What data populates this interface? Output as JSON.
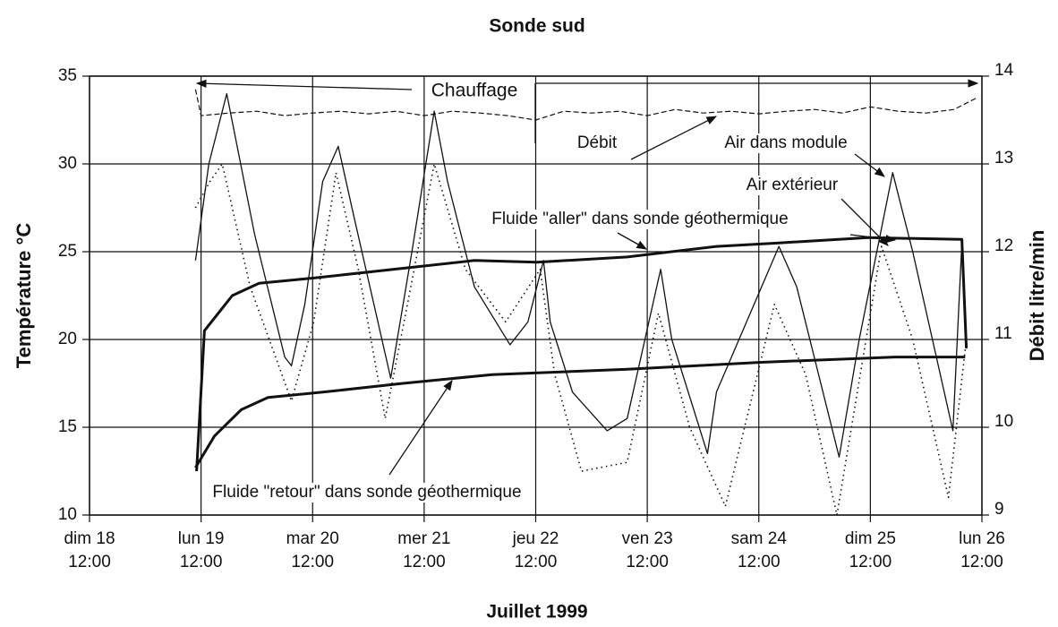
{
  "chart_data": {
    "type": "line",
    "title": "Sonde sud",
    "xlabel": "Juillet 1999",
    "ylabel": "Température °C",
    "y2label": "Débit litre/min",
    "xlim": [
      18.5,
      26.5
    ],
    "xticks": [
      {
        "value": 18.5,
        "label": "dim 18\n12:00"
      },
      {
        "value": 19.5,
        "label": "lun 19\n12:00"
      },
      {
        "value": 20.5,
        "label": "mar 20\n12:00"
      },
      {
        "value": 21.5,
        "label": "mer 21\n12:00"
      },
      {
        "value": 22.5,
        "label": "jeu 22\n12:00"
      },
      {
        "value": 23.5,
        "label": "ven 23\n12:00"
      },
      {
        "value": 24.5,
        "label": "sam 24\n12:00"
      },
      {
        "value": 25.5,
        "label": "dim 25\n12:00"
      },
      {
        "value": 26.5,
        "label": "lun 26\n12:00"
      }
    ],
    "ylim": [
      10,
      35
    ],
    "yticks": [
      10,
      15,
      20,
      25,
      30,
      35
    ],
    "y2lim": [
      9,
      14
    ],
    "y2ticks": [
      9,
      10,
      11,
      12,
      13,
      14
    ],
    "grid": true,
    "annotation": "Chauffage",
    "series": [
      {
        "name": "Air dans module",
        "color": "#111111",
        "style": "solid",
        "x": [
          19.45,
          19.57,
          19.73,
          19.98,
          20.25,
          20.31,
          20.43,
          20.59,
          20.73,
          20.87,
          21.2,
          21.39,
          21.59,
          21.71,
          21.95,
          22.27,
          22.43,
          22.57,
          22.63,
          22.83,
          23.14,
          23.32,
          23.62,
          23.72,
          24.04,
          24.12,
          24.68,
          24.84,
          25.22,
          25.4,
          25.7,
          25.88,
          26.24,
          26.32,
          26.36
        ],
        "values": [
          24.5,
          30,
          34,
          26,
          19,
          18.5,
          22,
          29,
          31,
          27,
          17.8,
          25,
          33,
          29,
          23,
          19.7,
          21,
          24.5,
          21,
          17,
          14.8,
          15.5,
          24,
          20,
          13.5,
          17,
          25.3,
          23,
          13.3,
          20,
          29.5,
          25,
          14.8,
          25.5,
          19.5
        ]
      },
      {
        "name": "Air extérieur",
        "color": "#111111",
        "style": "dotted",
        "x": [
          19.45,
          19.58,
          19.69,
          19.94,
          20.31,
          20.51,
          20.71,
          20.91,
          21.15,
          21.35,
          21.59,
          21.87,
          22.23,
          22.54,
          22.67,
          22.91,
          23.32,
          23.6,
          23.88,
          24.2,
          24.64,
          24.92,
          25.2,
          25.6,
          25.88,
          26.2,
          26.36
        ],
        "values": [
          27.5,
          29,
          30,
          23,
          16.5,
          21,
          29.5,
          24,
          15.5,
          22,
          30,
          24,
          21,
          24,
          18,
          12.5,
          13,
          21.5,
          15,
          10.5,
          22,
          18,
          10,
          25.3,
          20,
          11,
          20
        ]
      },
      {
        "name": "Fluide \"aller\" dans sonde géothermique",
        "color": "#111111",
        "style": "thick",
        "x": [
          19.46,
          19.53,
          19.78,
          20.02,
          20.51,
          21.23,
          21.95,
          22.51,
          23.32,
          24.12,
          24.68,
          25.48,
          26.32,
          26.36
        ],
        "values": [
          12.5,
          20.5,
          22.5,
          23.2,
          23.5,
          24,
          24.5,
          24.4,
          24.7,
          25.3,
          25.5,
          25.8,
          25.7,
          19.5
        ]
      },
      {
        "name": "Fluide \"retour\" dans sonde géothermique",
        "color": "#111111",
        "style": "thick",
        "x": [
          19.45,
          19.62,
          19.86,
          20.1,
          20.59,
          21.31,
          22.11,
          23.32,
          24.52,
          25.72,
          26.35
        ],
        "values": [
          12.7,
          14.5,
          16,
          16.7,
          17,
          17.5,
          18,
          18.3,
          18.7,
          19,
          19
        ]
      },
      {
        "name": "Débit",
        "color": "#111111",
        "style": "dashed",
        "axis": "y2",
        "x": [
          19.45,
          19.5,
          19.75,
          20.0,
          20.25,
          20.5,
          20.75,
          21.0,
          21.25,
          21.5,
          21.75,
          22.0,
          22.25,
          22.5,
          22.75,
          23.0,
          23.25,
          23.5,
          23.75,
          24.0,
          24.25,
          24.5,
          24.75,
          25.0,
          25.25,
          25.5,
          25.75,
          26.0,
          26.25,
          26.45
        ],
        "values": [
          13.85,
          13.55,
          13.58,
          13.6,
          13.55,
          13.58,
          13.6,
          13.57,
          13.6,
          13.55,
          13.6,
          13.58,
          13.55,
          13.5,
          13.6,
          13.58,
          13.6,
          13.55,
          13.62,
          13.58,
          13.6,
          13.57,
          13.6,
          13.62,
          13.58,
          13.65,
          13.6,
          13.58,
          13.62,
          13.75
        ]
      }
    ]
  }
}
